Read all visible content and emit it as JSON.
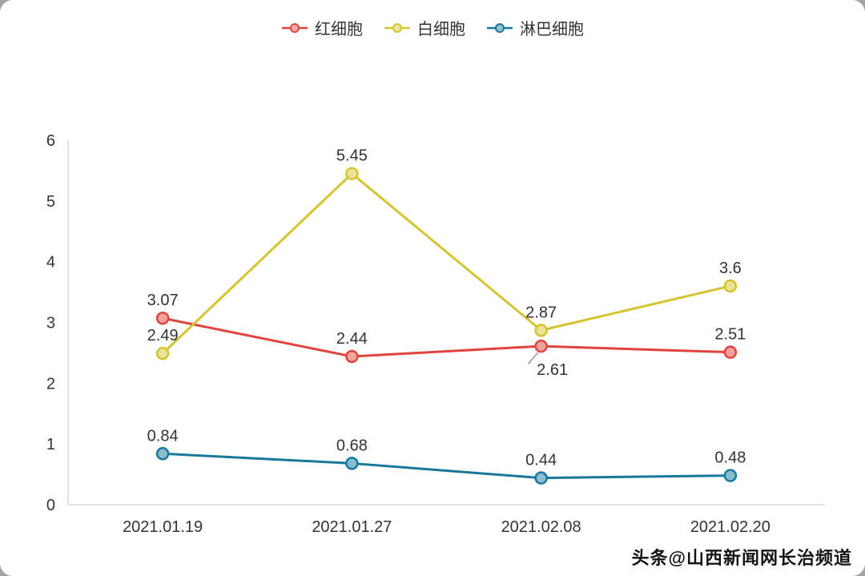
{
  "chart_data": {
    "type": "line",
    "categories": [
      "2021.01.19",
      "2021.01.27",
      "2021.02.08",
      "2021.02.20"
    ],
    "series": [
      {
        "name": "红细胞",
        "color": "#e0443a",
        "values": [
          3.07,
          2.44,
          2.61,
          2.51
        ]
      },
      {
        "name": "白细胞",
        "color": "#d4c42f",
        "values": [
          2.49,
          5.45,
          2.87,
          3.6
        ]
      },
      {
        "name": "淋巴细胞",
        "color": "#17789d",
        "values": [
          0.84,
          0.68,
          0.44,
          0.48
        ]
      }
    ],
    "ylim": [
      0,
      6
    ],
    "yticks": [
      0,
      1,
      2,
      3,
      4,
      5,
      6
    ],
    "grid": false,
    "legend_position": "top",
    "annotations": {
      "moved_label": {
        "series_index": 0,
        "point_index": 2,
        "position": "below",
        "leader_line": true
      }
    }
  },
  "watermark": {
    "text": "头条@山西新闻网长治频道"
  }
}
